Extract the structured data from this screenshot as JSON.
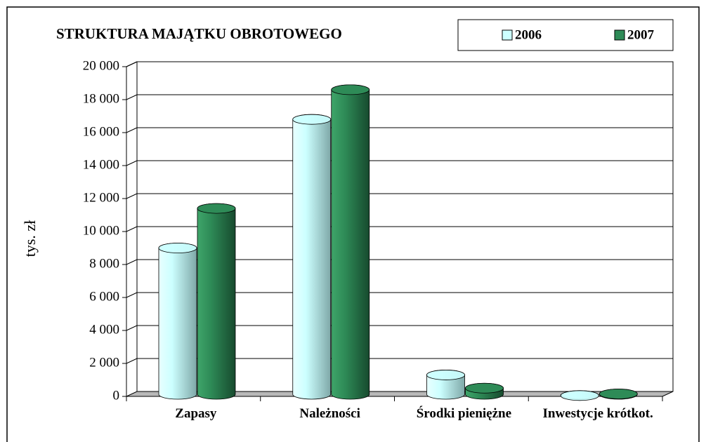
{
  "chart_data": {
    "type": "bar3d",
    "title": "STRUKTURA MAJĄTKU OBROTOWEGO",
    "y_label": "tys. zł",
    "categories": [
      "Zapasy",
      "Należności",
      "Środki pieniężne",
      "Inwestycje krótkot."
    ],
    "series": [
      {
        "name": "2006",
        "color": "#ccffff",
        "values": [
          9000,
          16800,
          1300,
          50
        ]
      },
      {
        "name": "2007",
        "color": "#2e8b57",
        "values": [
          11400,
          18600,
          500,
          150
        ]
      }
    ],
    "ylim": [
      0,
      20000
    ],
    "yticks": [
      0,
      {
        "value": 2000,
        "label": "2 000"
      },
      {
        "value": 4000,
        "label": "4 000"
      },
      {
        "value": 6000,
        "label": "6 000"
      },
      {
        "value": 8000,
        "label": "8 000"
      },
      {
        "value": 10000,
        "label": "10 000"
      },
      {
        "value": 12000,
        "label": "12 000"
      },
      {
        "value": 14000,
        "label": "14 000"
      },
      {
        "value": 16000,
        "label": "16 000"
      },
      {
        "value": 18000,
        "label": "18 000"
      },
      {
        "value": 20000,
        "label": "20 000"
      }
    ],
    "grid": true,
    "legend": "top-right"
  }
}
